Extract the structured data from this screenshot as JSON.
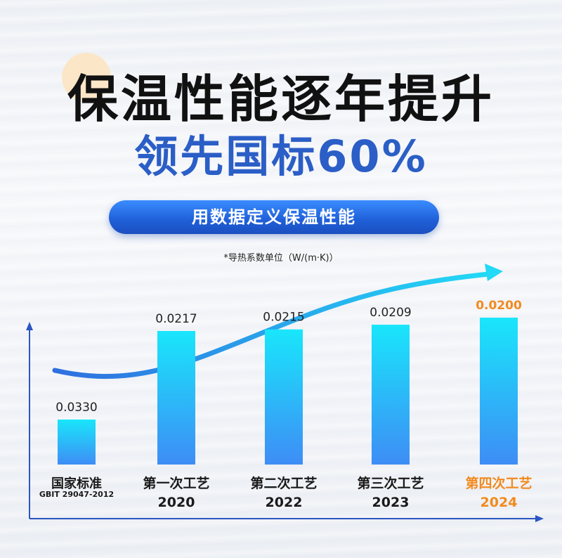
{
  "header": {
    "title": "保温性能逐年提升",
    "subtitle": "领先国标60%",
    "pill_label": "用数据定义保温性能",
    "unit_note": "*导热系数单位（W/(m·K)）"
  },
  "colors": {
    "title": "#111111",
    "subtitle": "#2b5ec6",
    "highlight": "#f28a1e",
    "bar_top": "#19e6fb",
    "bar_bottom": "#3e8df5",
    "axis": "#2a55c4"
  },
  "chart_data": {
    "type": "bar",
    "categories": [
      "国家标准",
      "第一次工艺",
      "第二次工艺",
      "第三次工艺",
      "第四次工艺"
    ],
    "sublabels": [
      "GBIT 29047-2012",
      "2020",
      "2022",
      "2023",
      "2024"
    ],
    "values": [
      0.033,
      0.0217,
      0.0215,
      0.0209,
      0.02
    ],
    "value_labels": [
      "0.0330",
      "0.0217",
      "0.0215",
      "0.0209",
      "0.0200"
    ],
    "highlight_index": 4,
    "unit": "W/(m·K)",
    "grid": false,
    "trend_arrow": true
  }
}
